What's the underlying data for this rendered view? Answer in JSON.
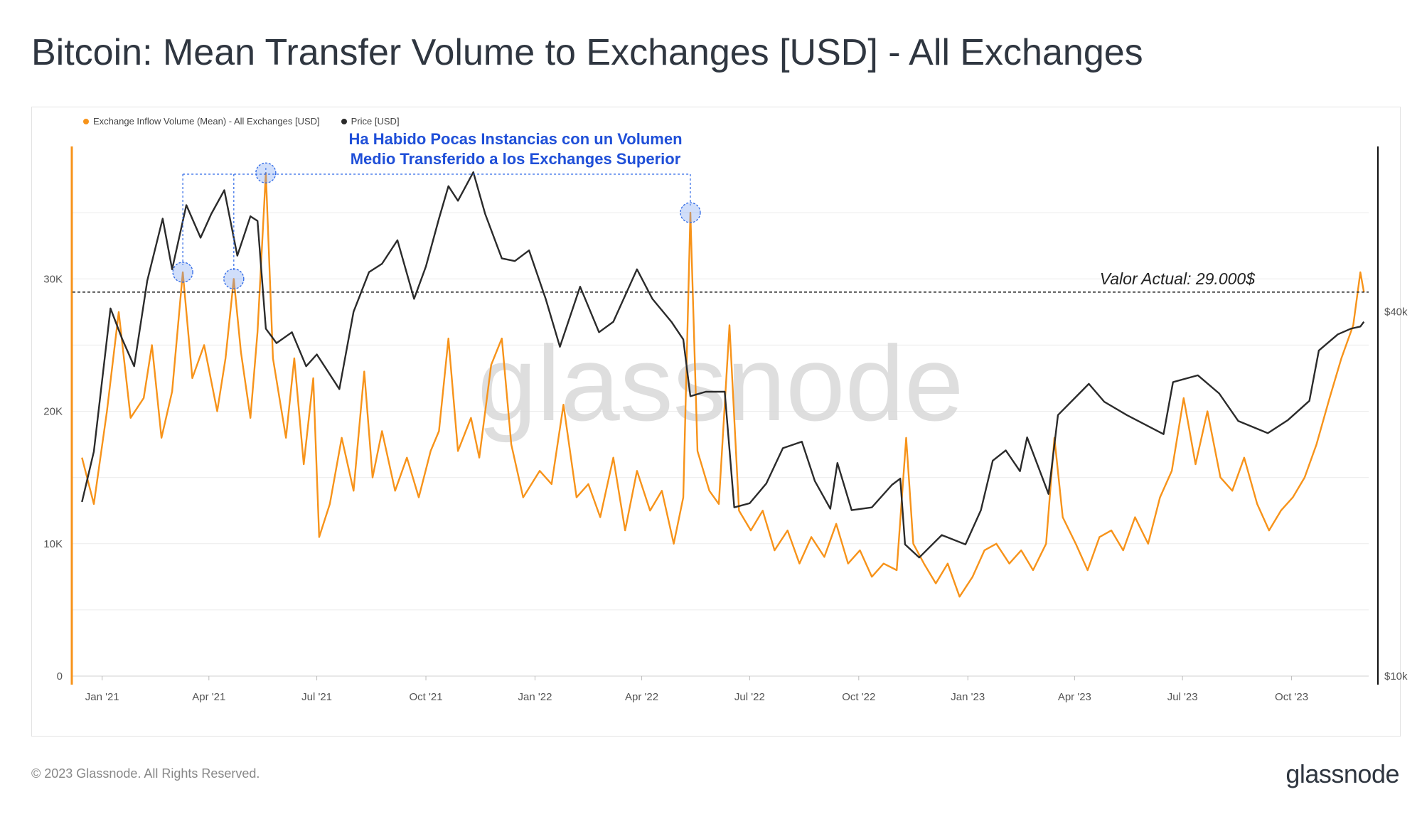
{
  "title": "Bitcoin: Mean Transfer Volume to Exchanges [USD] - All Exchanges",
  "legend": [
    {
      "label": "Exchange Inflow Volume (Mean) - All Exchanges [USD]",
      "color": "#f7931a"
    },
    {
      "label": "Price [USD]",
      "color": "#2b2b2b"
    }
  ],
  "watermark": "glassnode",
  "annotation": {
    "line1": "Ha Habido Pocas Instancias con un Volumen",
    "line2": "Medio Transferido a los Exchanges Superior",
    "color": "#1f4fd8"
  },
  "current_value_label": "Valor Actual: 29.000$",
  "footer": {
    "copyright": "© 2023 Glassnode. All Rights Reserved.",
    "logo": "glassnode"
  },
  "chart_data": {
    "type": "line",
    "x_tick_labels": [
      "Jan '21",
      "Apr '21",
      "Jul '21",
      "Oct '21",
      "Jan '22",
      "Apr '22",
      "Jul '22",
      "Oct '22",
      "Jan '23",
      "Apr '23",
      "Jul '23",
      "Oct '23"
    ],
    "y_left_ticks": [
      "0",
      "10K",
      "20K",
      "30K"
    ],
    "y_left_values": [
      0,
      10000,
      20000,
      30000
    ],
    "y_left_lim": [
      0,
      40000
    ],
    "y_right_ticks": [
      "$10k",
      "$40k"
    ],
    "y_right_values": [
      10000,
      40000
    ],
    "y_right_scale": "log",
    "y_right_lim": [
      10000,
      75000
    ],
    "reference_line": {
      "value": 29000,
      "style": "dashed"
    },
    "grid": true,
    "legend_position": "top-left",
    "series": [
      {
        "name": "Exchange Inflow Volume (Mean) - All Exchanges [USD]",
        "axis": "left",
        "color": "#f7931a",
        "points": [
          [
            "2020-12-15",
            16500
          ],
          [
            "2020-12-25",
            13000
          ],
          [
            "2021-01-05",
            20000
          ],
          [
            "2021-01-15",
            27500
          ],
          [
            "2021-01-25",
            19500
          ],
          [
            "2021-02-05",
            21000
          ],
          [
            "2021-02-12",
            25000
          ],
          [
            "2021-02-20",
            18000
          ],
          [
            "2021-03-01",
            21500
          ],
          [
            "2021-03-10",
            30500
          ],
          [
            "2021-03-18",
            22500
          ],
          [
            "2021-03-28",
            25000
          ],
          [
            "2021-04-08",
            20000
          ],
          [
            "2021-04-15",
            24000
          ],
          [
            "2021-04-22",
            30000
          ],
          [
            "2021-04-28",
            24500
          ],
          [
            "2021-05-06",
            19500
          ],
          [
            "2021-05-12",
            26000
          ],
          [
            "2021-05-19",
            38000
          ],
          [
            "2021-05-25",
            24000
          ],
          [
            "2021-06-05",
            18000
          ],
          [
            "2021-06-12",
            24000
          ],
          [
            "2021-06-20",
            16000
          ],
          [
            "2021-06-28",
            22500
          ],
          [
            "2021-07-03",
            10500
          ],
          [
            "2021-07-12",
            13000
          ],
          [
            "2021-07-22",
            18000
          ],
          [
            "2021-08-01",
            14000
          ],
          [
            "2021-08-10",
            23000
          ],
          [
            "2021-08-17",
            15000
          ],
          [
            "2021-08-25",
            18500
          ],
          [
            "2021-09-05",
            14000
          ],
          [
            "2021-09-15",
            16500
          ],
          [
            "2021-09-25",
            13500
          ],
          [
            "2021-10-05",
            17000
          ],
          [
            "2021-10-12",
            18500
          ],
          [
            "2021-10-20",
            25500
          ],
          [
            "2021-10-28",
            17000
          ],
          [
            "2021-11-08",
            19500
          ],
          [
            "2021-11-15",
            16500
          ],
          [
            "2021-11-25",
            23500
          ],
          [
            "2021-12-04",
            25500
          ],
          [
            "2021-12-12",
            17500
          ],
          [
            "2021-12-22",
            13500
          ],
          [
            "2022-01-05",
            15500
          ],
          [
            "2022-01-15",
            14500
          ],
          [
            "2022-01-25",
            20500
          ],
          [
            "2022-02-05",
            13500
          ],
          [
            "2022-02-15",
            14500
          ],
          [
            "2022-02-25",
            12000
          ],
          [
            "2022-03-08",
            16500
          ],
          [
            "2022-03-18",
            11000
          ],
          [
            "2022-03-28",
            15500
          ],
          [
            "2022-04-08",
            12500
          ],
          [
            "2022-04-18",
            14000
          ],
          [
            "2022-04-28",
            10000
          ],
          [
            "2022-05-06",
            13500
          ],
          [
            "2022-05-12",
            35000
          ],
          [
            "2022-05-18",
            17000
          ],
          [
            "2022-05-28",
            14000
          ],
          [
            "2022-06-05",
            13000
          ],
          [
            "2022-06-14",
            26500
          ],
          [
            "2022-06-22",
            12500
          ],
          [
            "2022-07-02",
            11000
          ],
          [
            "2022-07-12",
            12500
          ],
          [
            "2022-07-22",
            9500
          ],
          [
            "2022-08-02",
            11000
          ],
          [
            "2022-08-12",
            8500
          ],
          [
            "2022-08-22",
            10500
          ],
          [
            "2022-09-02",
            9000
          ],
          [
            "2022-09-12",
            11500
          ],
          [
            "2022-09-22",
            8500
          ],
          [
            "2022-10-02",
            9500
          ],
          [
            "2022-10-12",
            7500
          ],
          [
            "2022-10-22",
            8500
          ],
          [
            "2022-11-02",
            8000
          ],
          [
            "2022-11-10",
            18000
          ],
          [
            "2022-11-16",
            10000
          ],
          [
            "2022-11-25",
            8500
          ],
          [
            "2022-12-05",
            7000
          ],
          [
            "2022-12-15",
            8500
          ],
          [
            "2022-12-25",
            6000
          ],
          [
            "2023-01-05",
            7500
          ],
          [
            "2023-01-15",
            9500
          ],
          [
            "2023-01-25",
            10000
          ],
          [
            "2023-02-05",
            8500
          ],
          [
            "2023-02-15",
            9500
          ],
          [
            "2023-02-25",
            8000
          ],
          [
            "2023-03-08",
            10000
          ],
          [
            "2023-03-15",
            18000
          ],
          [
            "2023-03-22",
            12000
          ],
          [
            "2023-04-02",
            10000
          ],
          [
            "2023-04-12",
            8000
          ],
          [
            "2023-04-22",
            10500
          ],
          [
            "2023-05-02",
            11000
          ],
          [
            "2023-05-12",
            9500
          ],
          [
            "2023-05-22",
            12000
          ],
          [
            "2023-06-02",
            10000
          ],
          [
            "2023-06-12",
            13500
          ],
          [
            "2023-06-22",
            15500
          ],
          [
            "2023-07-02",
            21000
          ],
          [
            "2023-07-12",
            16000
          ],
          [
            "2023-07-22",
            20000
          ],
          [
            "2023-08-02",
            15000
          ],
          [
            "2023-08-12",
            14000
          ],
          [
            "2023-08-22",
            16500
          ],
          [
            "2023-09-02",
            13000
          ],
          [
            "2023-09-12",
            11000
          ],
          [
            "2023-09-22",
            12500
          ],
          [
            "2023-10-02",
            13500
          ],
          [
            "2023-10-12",
            15000
          ],
          [
            "2023-10-22",
            17500
          ],
          [
            "2023-11-02",
            21000
          ],
          [
            "2023-11-12",
            24000
          ],
          [
            "2023-11-22",
            26500
          ],
          [
            "2023-11-28",
            30500
          ],
          [
            "2023-12-01",
            29000
          ]
        ]
      },
      {
        "name": "Price [USD]",
        "axis": "right",
        "color": "#2b2b2b",
        "points": [
          [
            "2020-12-15",
            19400
          ],
          [
            "2020-12-25",
            23500
          ],
          [
            "2021-01-08",
            40500
          ],
          [
            "2021-01-18",
            36000
          ],
          [
            "2021-01-28",
            32500
          ],
          [
            "2021-02-08",
            45000
          ],
          [
            "2021-02-21",
            57000
          ],
          [
            "2021-03-01",
            47000
          ],
          [
            "2021-03-13",
            60000
          ],
          [
            "2021-03-25",
            53000
          ],
          [
            "2021-04-03",
            58000
          ],
          [
            "2021-04-14",
            63500
          ],
          [
            "2021-04-25",
            49500
          ],
          [
            "2021-05-06",
            57500
          ],
          [
            "2021-05-12",
            56500
          ],
          [
            "2021-05-19",
            37500
          ],
          [
            "2021-05-28",
            35500
          ],
          [
            "2021-06-10",
            37000
          ],
          [
            "2021-06-22",
            32500
          ],
          [
            "2021-07-01",
            34000
          ],
          [
            "2021-07-20",
            29800
          ],
          [
            "2021-08-01",
            40000
          ],
          [
            "2021-08-14",
            46500
          ],
          [
            "2021-08-25",
            48000
          ],
          [
            "2021-09-07",
            52500
          ],
          [
            "2021-09-21",
            42000
          ],
          [
            "2021-10-01",
            47500
          ],
          [
            "2021-10-12",
            57000
          ],
          [
            "2021-10-20",
            64500
          ],
          [
            "2021-10-28",
            61000
          ],
          [
            "2021-11-10",
            68000
          ],
          [
            "2021-11-20",
            58000
          ],
          [
            "2021-12-04",
            49000
          ],
          [
            "2021-12-15",
            48500
          ],
          [
            "2021-12-27",
            50500
          ],
          [
            "2022-01-10",
            42000
          ],
          [
            "2022-01-22",
            35000
          ],
          [
            "2022-02-08",
            44000
          ],
          [
            "2022-02-24",
            37000
          ],
          [
            "2022-03-08",
            38500
          ],
          [
            "2022-03-28",
            47000
          ],
          [
            "2022-04-10",
            42000
          ],
          [
            "2022-04-26",
            38500
          ],
          [
            "2022-05-06",
            36000
          ],
          [
            "2022-05-12",
            29000
          ],
          [
            "2022-05-25",
            29500
          ],
          [
            "2022-06-10",
            29500
          ],
          [
            "2022-06-18",
            19000
          ],
          [
            "2022-07-01",
            19300
          ],
          [
            "2022-07-15",
            20800
          ],
          [
            "2022-07-29",
            23800
          ],
          [
            "2022-08-14",
            24400
          ],
          [
            "2022-08-25",
            21000
          ],
          [
            "2022-09-07",
            18900
          ],
          [
            "2022-09-13",
            22500
          ],
          [
            "2022-09-25",
            18800
          ],
          [
            "2022-10-12",
            19000
          ],
          [
            "2022-10-29",
            20700
          ],
          [
            "2022-11-05",
            21200
          ],
          [
            "2022-11-09",
            16500
          ],
          [
            "2022-11-21",
            15700
          ],
          [
            "2022-12-10",
            17100
          ],
          [
            "2022-12-30",
            16500
          ],
          [
            "2023-01-12",
            18800
          ],
          [
            "2023-01-22",
            22700
          ],
          [
            "2023-02-02",
            23600
          ],
          [
            "2023-02-14",
            21800
          ],
          [
            "2023-02-20",
            24800
          ],
          [
            "2023-03-10",
            20000
          ],
          [
            "2023-03-18",
            27000
          ],
          [
            "2023-04-13",
            30400
          ],
          [
            "2023-04-26",
            28400
          ],
          [
            "2023-05-15",
            27000
          ],
          [
            "2023-06-15",
            25100
          ],
          [
            "2023-06-23",
            30600
          ],
          [
            "2023-07-14",
            31400
          ],
          [
            "2023-08-01",
            29300
          ],
          [
            "2023-08-17",
            26400
          ],
          [
            "2023-09-11",
            25200
          ],
          [
            "2023-09-28",
            26500
          ],
          [
            "2023-10-16",
            28500
          ],
          [
            "2023-10-24",
            34500
          ],
          [
            "2023-11-09",
            36700
          ],
          [
            "2023-11-20",
            37500
          ],
          [
            "2023-11-28",
            37800
          ],
          [
            "2023-12-01",
            38500
          ]
        ]
      }
    ],
    "highlighted_peaks": [
      "2021-03-10",
      "2021-04-22",
      "2021-05-19",
      "2022-05-12"
    ]
  }
}
